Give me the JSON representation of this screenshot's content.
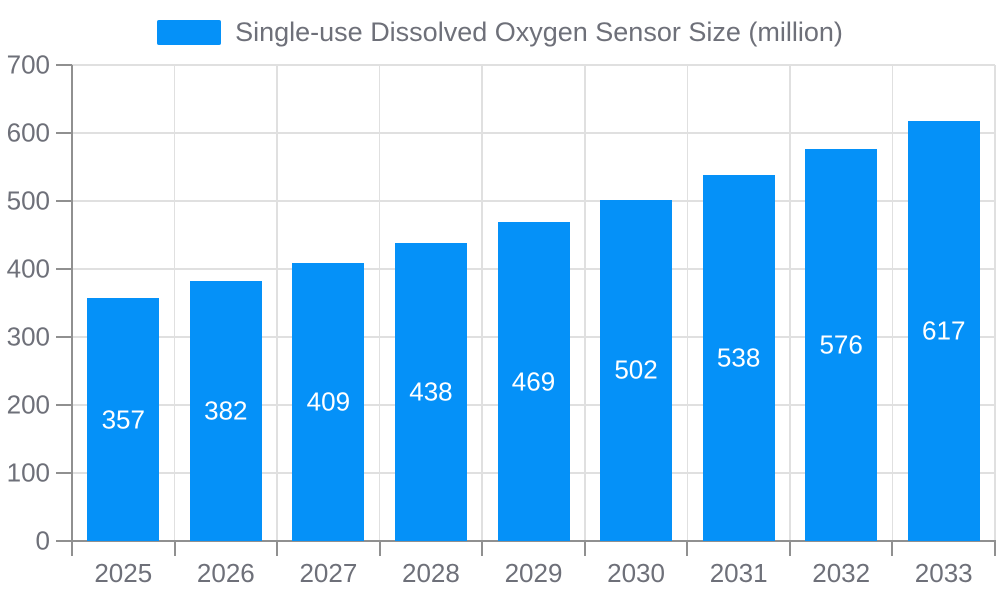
{
  "chart_data": {
    "type": "bar",
    "title": "Single-use Dissolved Oxygen Sensor Size (million)",
    "categories": [
      "2025",
      "2026",
      "2027",
      "2028",
      "2029",
      "2030",
      "2031",
      "2032",
      "2033"
    ],
    "values": [
      357,
      382,
      409,
      438,
      469,
      502,
      538,
      576,
      617
    ],
    "xlabel": "",
    "ylabel": "",
    "ylim": [
      0,
      700
    ],
    "ytick_step": 100,
    "ytick_labels": [
      "0",
      "100",
      "200",
      "300",
      "400",
      "500",
      "600",
      "700"
    ],
    "grid": true,
    "legend_position": "top-center",
    "colors": {
      "bar": "#0591F8",
      "value_label": "#ffffff",
      "axis_text": "#6E7079",
      "axis_line": "#909090",
      "grid_line": "#E0E0E0",
      "background": "#ffffff"
    }
  }
}
